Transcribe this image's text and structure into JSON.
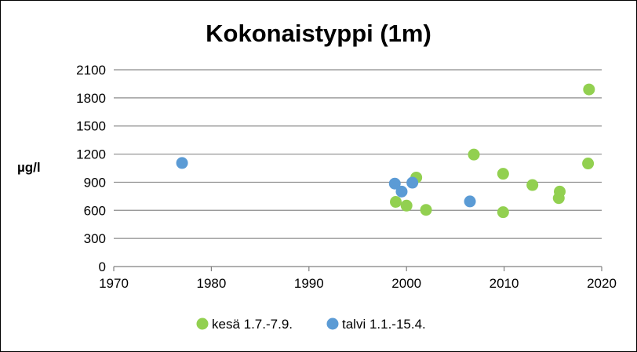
{
  "chart_data": {
    "type": "scatter",
    "title": "Kokonaistyppi (1m)",
    "xlabel": "",
    "ylabel": "µg/l",
    "xlim": [
      1970,
      2020
    ],
    "ylim": [
      0,
      2100
    ],
    "x_ticks": [
      1970,
      1980,
      1990,
      2000,
      2010,
      2020
    ],
    "y_ticks": [
      0,
      300,
      600,
      900,
      1200,
      1500,
      1800,
      2100
    ],
    "grid": "horizontal",
    "legend_position": "bottom",
    "series": [
      {
        "name": "kesä 1.7.-7.9.",
        "color": "#92D050",
        "points": [
          {
            "x": 1998.9,
            "y": 690
          },
          {
            "x": 2000.0,
            "y": 650
          },
          {
            "x": 2001.0,
            "y": 950
          },
          {
            "x": 2002.0,
            "y": 605
          },
          {
            "x": 2006.9,
            "y": 1195
          },
          {
            "x": 2009.9,
            "y": 990
          },
          {
            "x": 2009.9,
            "y": 580
          },
          {
            "x": 2012.9,
            "y": 870
          },
          {
            "x": 2015.7,
            "y": 800
          },
          {
            "x": 2015.6,
            "y": 730
          },
          {
            "x": 2018.6,
            "y": 1100
          },
          {
            "x": 2018.7,
            "y": 1890
          }
        ]
      },
      {
        "name": "talvi 1.1.-15.4.",
        "color": "#5B9BD5",
        "points": [
          {
            "x": 1977.0,
            "y": 1105
          },
          {
            "x": 1998.8,
            "y": 885
          },
          {
            "x": 1999.5,
            "y": 800
          },
          {
            "x": 2000.6,
            "y": 895
          },
          {
            "x": 2006.5,
            "y": 695
          }
        ]
      }
    ]
  }
}
